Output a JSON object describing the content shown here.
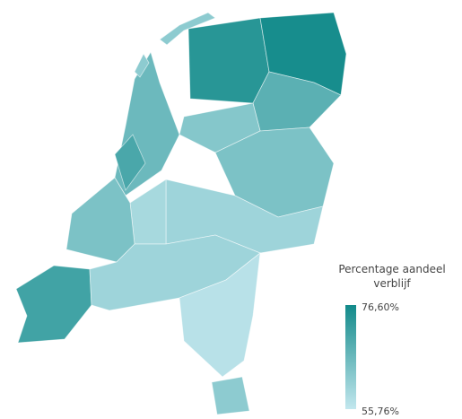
{
  "map": {
    "type": "choropleth",
    "values": [
      74,
      76,
      68,
      66,
      62,
      63,
      64,
      60,
      59,
      64,
      71,
      60,
      57,
      62,
      70
    ],
    "low_color": "#c2e7ee",
    "high_color": "#128a8a",
    "legend": {
      "title": "Percentage aandeel verblijf",
      "max": {
        "value": 76.6,
        "label": "76,60%"
      },
      "min": {
        "value": 55.76,
        "label": "55,76%"
      }
    }
  }
}
